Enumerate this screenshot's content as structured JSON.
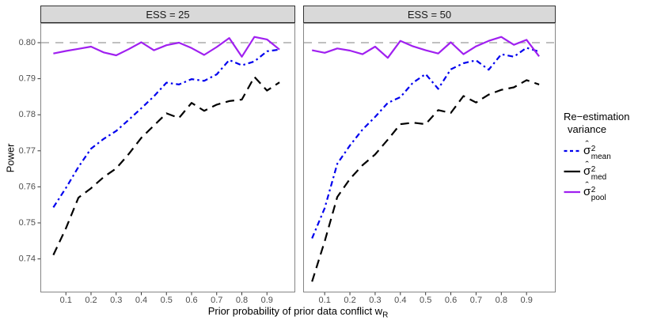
{
  "chart_data": {
    "type": "line",
    "title": "",
    "xlabel": "Prior probability of prior data conflict w_R",
    "xlabel_base": "Prior probability of prior data conflict w",
    "xlabel_sub": "R",
    "ylabel": "Power",
    "x_ticks": [
      0.1,
      0.2,
      0.3,
      0.4,
      0.5,
      0.6,
      0.7,
      0.8,
      0.9
    ],
    "x_tick_labels": [
      "0.1",
      "0.2",
      "0.3",
      "0.4",
      "0.5",
      "0.6",
      "0.7",
      "0.8",
      "0.9"
    ],
    "y_ticks": [
      0.74,
      0.75,
      0.76,
      0.77,
      0.78,
      0.79,
      0.8
    ],
    "y_tick_labels": [
      "0.74",
      "0.75",
      "0.76",
      "0.77",
      "0.78",
      "0.79",
      "0.80"
    ],
    "xlim": [
      0.0,
      1.013
    ],
    "ylim": [
      0.731,
      0.8055
    ],
    "grid": "off",
    "reference_line": {
      "y": 0.8,
      "color": "#ababab",
      "dash": "10 8",
      "width": 1.6
    },
    "x": [
      0.05,
      0.1,
      0.15,
      0.2,
      0.25,
      0.3,
      0.35,
      0.4,
      0.45,
      0.5,
      0.55,
      0.6,
      0.65,
      0.7,
      0.75,
      0.8,
      0.85,
      0.9,
      0.95
    ],
    "facets": [
      {
        "label": "ESS = 25",
        "series": [
          {
            "legend_id": "mean",
            "values": [
              0.7543,
              0.7597,
              0.7655,
              0.7706,
              0.7733,
              0.7755,
              0.7786,
              0.7818,
              0.7851,
              0.7889,
              0.7884,
              0.7899,
              0.7894,
              0.7912,
              0.7952,
              0.7937,
              0.7948,
              0.7976,
              0.7981
            ]
          },
          {
            "legend_id": "med",
            "values": [
              0.7411,
              0.7485,
              0.757,
              0.7596,
              0.7627,
              0.7651,
              0.7691,
              0.7736,
              0.777,
              0.7804,
              0.7791,
              0.7833,
              0.7811,
              0.7828,
              0.7838,
              0.7842,
              0.7905,
              0.7867,
              0.789
            ]
          },
          {
            "legend_id": "pool",
            "values": [
              0.797,
              0.7977,
              0.7983,
              0.7989,
              0.7973,
              0.7965,
              0.7982,
              0.8001,
              0.7979,
              0.7993,
              0.8,
              0.7985,
              0.7966,
              0.7988,
              0.8013,
              0.7961,
              0.8016,
              0.8009,
              0.7981
            ]
          }
        ]
      },
      {
        "label": "ESS = 50",
        "series": [
          {
            "legend_id": "mean",
            "values": [
              0.7457,
              0.7541,
              0.7664,
              0.7715,
              0.7759,
              0.7794,
              0.7833,
              0.7849,
              0.7889,
              0.7913,
              0.7872,
              0.7926,
              0.7943,
              0.7951,
              0.7925,
              0.7968,
              0.7961,
              0.7986,
              0.7975
            ]
          },
          {
            "legend_id": "med",
            "values": [
              0.7337,
              0.7449,
              0.7572,
              0.7622,
              0.766,
              0.769,
              0.7731,
              0.7774,
              0.7778,
              0.7774,
              0.7813,
              0.7805,
              0.7852,
              0.7834,
              0.7856,
              0.7869,
              0.7876,
              0.7896,
              0.7884
            ]
          },
          {
            "legend_id": "pool",
            "values": [
              0.7979,
              0.7972,
              0.7984,
              0.7978,
              0.7968,
              0.7989,
              0.7958,
              0.8005,
              0.799,
              0.7979,
              0.797,
              0.8001,
              0.7968,
              0.799,
              0.8005,
              0.8016,
              0.7994,
              0.8008,
              0.7962
            ]
          }
        ]
      }
    ],
    "legend": {
      "position": "right",
      "title_line1": "Re−estimation",
      "title_line2": "variance",
      "items": [
        {
          "id": "mean",
          "sigma": "σ",
          "hat": "ˆ",
          "sup": "2",
          "sub": "mean",
          "color": "#0000ee",
          "line_dash": "7 4 2.5 4",
          "key_dash": "4 3.5",
          "line_width": 2.2
        },
        {
          "id": "med",
          "sigma": "σ",
          "hat": "ˆ",
          "sup": "2",
          "sub": "med",
          "color": "#000000",
          "line_dash": "11 7",
          "key_dash": "",
          "line_width": 2.2
        },
        {
          "id": "pool",
          "sigma": "σ",
          "hat": "ˆ",
          "sup": "2",
          "sub": "pool",
          "color": "#a020f0",
          "line_dash": "",
          "key_dash": "",
          "line_width": 2.2
        }
      ]
    },
    "colors": {
      "mean": "#0000ee",
      "med": "#000000",
      "pool": "#a020f0",
      "reference": "#ababab"
    }
  }
}
